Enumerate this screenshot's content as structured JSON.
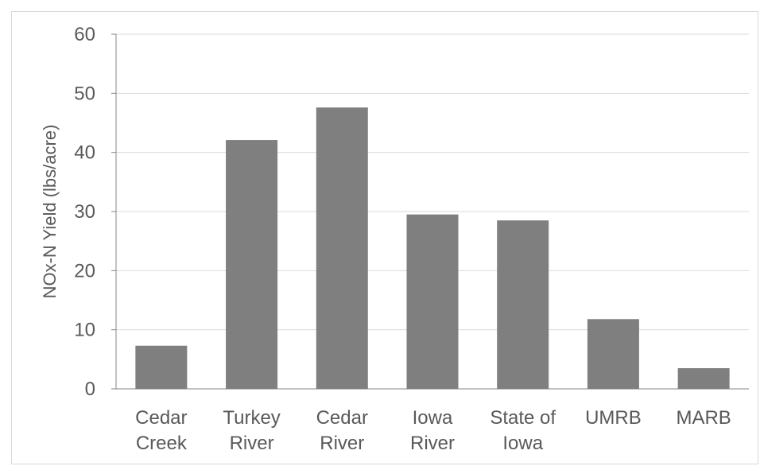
{
  "chart_data": {
    "type": "bar",
    "title": "",
    "xlabel": "",
    "ylabel": "NOx-N Yield  (lbs/acre)",
    "ylim": [
      0,
      60
    ],
    "yticks": [
      0,
      10,
      20,
      30,
      40,
      50,
      60
    ],
    "grid": true,
    "legend": "none",
    "bar_color": "#7f7f7f",
    "categories": [
      [
        "Cedar",
        "Creek"
      ],
      [
        "Turkey",
        "River"
      ],
      [
        "Cedar",
        "River"
      ],
      [
        "Iowa",
        "River"
      ],
      [
        "State of",
        "Iowa"
      ],
      [
        "UMRB"
      ],
      [
        "MARB"
      ]
    ],
    "values": [
      7.3,
      42.1,
      47.6,
      29.5,
      28.5,
      11.8,
      3.5
    ]
  }
}
